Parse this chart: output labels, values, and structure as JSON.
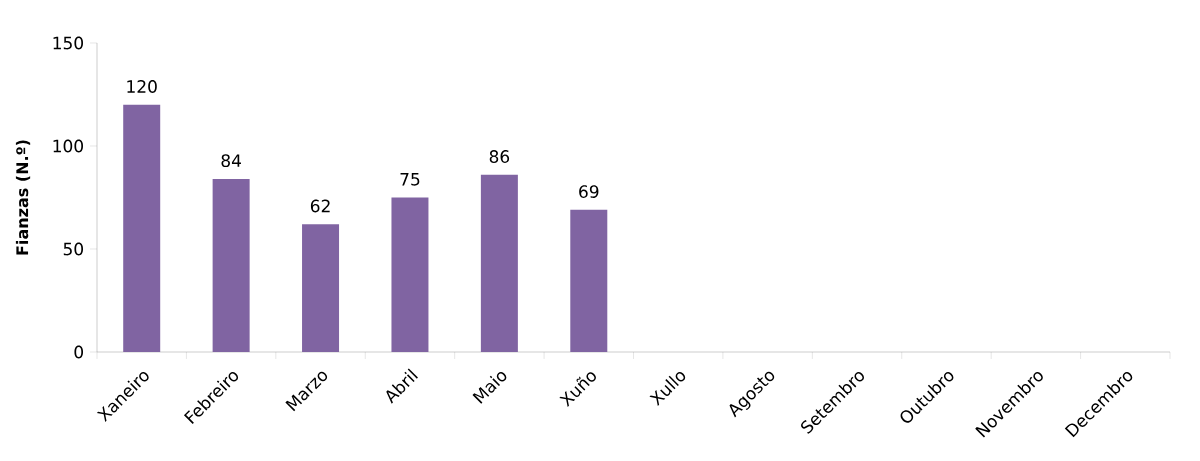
{
  "chart_data": {
    "type": "bar",
    "ylabel": "**Fianzas (N.º)**",
    "categories": [
      "Xaneiro",
      "Febreiro",
      "Marzo",
      "Abril",
      "Maio",
      "Xuño",
      "Xullo",
      "Agosto",
      "Setembro",
      "Outubro",
      "Novembro",
      "Decembro"
    ],
    "values": [
      120,
      84,
      62,
      75,
      86,
      69,
      null,
      null,
      null,
      null,
      null,
      null
    ],
    "value_labels": [
      "120",
      "84",
      "62",
      "75",
      "86",
      "69",
      null,
      null,
      null,
      null,
      null,
      null
    ],
    "color": "#8064a2",
    "ylim": [
      0,
      150
    ],
    "yticks": [
      0,
      50,
      100,
      150
    ]
  }
}
